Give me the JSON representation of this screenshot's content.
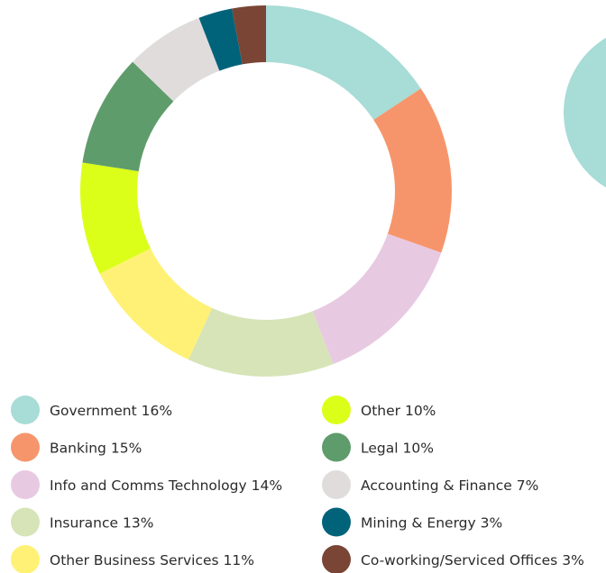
{
  "chart_data": {
    "type": "donut",
    "categories": [
      "Government",
      "Banking",
      "Info and Comms Technology",
      "Insurance",
      "Other Business Services",
      "Other",
      "Legal",
      "Accounting & Finance",
      "Mining & Energy",
      "Co-working/Serviced Offices"
    ],
    "values": [
      16,
      15,
      14,
      13,
      11,
      10,
      10,
      7,
      3,
      3
    ],
    "value_labels": [
      "16%",
      "15%",
      "14%",
      "13%",
      "11%",
      "10%",
      "10%",
      "7%",
      "3%",
      "3%"
    ],
    "colors": [
      "#a8dcd6",
      "#f6956b",
      "#e8c9e2",
      "#d6e4b8",
      "#fff176",
      "#dcff1a",
      "#5f9c6b",
      "#e0dcdc",
      "#00637a",
      "#7a4535"
    ]
  }
}
